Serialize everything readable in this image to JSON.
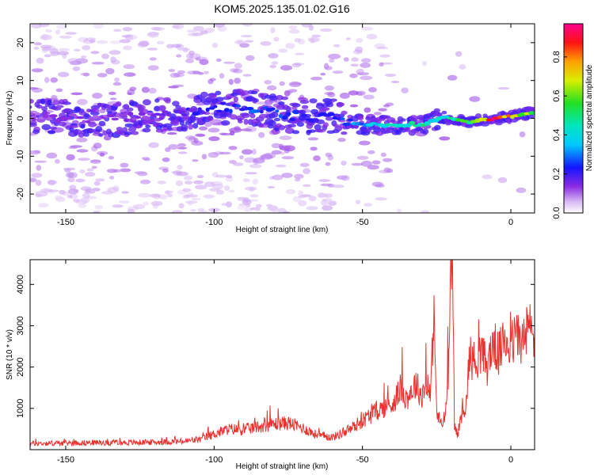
{
  "figure": {
    "title": "KOM5.2025.135.01.02.G16"
  },
  "chart_data": [
    {
      "type": "heatmap",
      "title": "KOM5.2025.135.01.02.G16",
      "xlabel": "Height of straight line (km)",
      "ylabel": "Frequency (Hz)",
      "xlim": [
        -162,
        8
      ],
      "ylim": [
        -25,
        25
      ],
      "x_ticks": [
        -150,
        -100,
        -50,
        0
      ],
      "y_ticks": [
        -20,
        -10,
        0,
        10,
        20
      ],
      "grid": false,
      "colorbar": {
        "label": "Normalized spectral amplitude",
        "range": [
          0,
          0.97
        ],
        "ticks": [
          0.0,
          0.2,
          0.4,
          0.6,
          0.8
        ],
        "colormap": "rainbow (white-violet-blue-cyan-green-yellow-red-magenta)"
      },
      "ridge": {
        "description": "main spectral ridge (frequency vs height)",
        "points": [
          {
            "x": -160,
            "y": 0.5,
            "amplitude": 0.12
          },
          {
            "x": -140,
            "y": -0.3,
            "amplitude": 0.13
          },
          {
            "x": -120,
            "y": 0.3,
            "amplitude": 0.14
          },
          {
            "x": -100,
            "y": 2.5,
            "amplitude": 0.22
          },
          {
            "x": -90,
            "y": 3.5,
            "amplitude": 0.26
          },
          {
            "x": -80,
            "y": 1.5,
            "amplitude": 0.25
          },
          {
            "x": -70,
            "y": 0.5,
            "amplitude": 0.22
          },
          {
            "x": -60,
            "y": 0.5,
            "amplitude": 0.2
          },
          {
            "x": -50,
            "y": -1.5,
            "amplitude": 0.32
          },
          {
            "x": -40,
            "y": -2.0,
            "amplitude": 0.42
          },
          {
            "x": -30,
            "y": -1.5,
            "amplitude": 0.45
          },
          {
            "x": -22,
            "y": 0.5,
            "amplitude": 0.4
          },
          {
            "x": -15,
            "y": -1.0,
            "amplitude": 0.55
          },
          {
            "x": -10,
            "y": -0.5,
            "amplitude": 0.8
          },
          {
            "x": -5,
            "y": 0.0,
            "amplitude": 0.9
          },
          {
            "x": 0,
            "y": 0.5,
            "amplitude": 0.75
          },
          {
            "x": 8,
            "y": 1.5,
            "amplitude": 0.6
          }
        ]
      }
    },
    {
      "type": "line",
      "xlabel": "Height of straight line (km)",
      "ylabel": "SNR (10 * v/v)",
      "xlim": [
        -162,
        8
      ],
      "ylim": [
        0,
        4600
      ],
      "x_ticks": [
        -150,
        -100,
        -50,
        0
      ],
      "y_ticks": [
        1000,
        2000,
        3000,
        4000
      ],
      "grid": false,
      "series": [
        {
          "color": "#e8322f",
          "x": [
            -162,
            -150,
            -140,
            -130,
            -120,
            -110,
            -104,
            -100,
            -95,
            -90,
            -85,
            -80,
            -75,
            -70,
            -65,
            -60,
            -55,
            -50,
            -45,
            -40,
            -37,
            -35,
            -32,
            -30,
            -28,
            -27,
            -26,
            -25,
            -24,
            -23,
            -22,
            -21,
            -20,
            -19.5,
            -19,
            -18,
            -17,
            -16,
            -15,
            -14,
            -12,
            -10,
            -8,
            -6,
            -4,
            -2,
            0,
            2,
            4,
            6,
            8
          ],
          "y": [
            150,
            160,
            170,
            170,
            180,
            200,
            260,
            380,
            500,
            480,
            560,
            620,
            650,
            520,
            340,
            300,
            460,
            700,
            950,
            1100,
            1500,
            1250,
            1600,
            1300,
            1700,
            1200,
            3450,
            900,
            700,
            600,
            900,
            2000,
            4500,
            3800,
            600,
            350,
            700,
            1000,
            1100,
            2300,
            2100,
            2400,
            2000,
            2600,
            2300,
            2700,
            2500,
            2800,
            2600,
            3000,
            2700
          ]
        }
      ]
    }
  ]
}
